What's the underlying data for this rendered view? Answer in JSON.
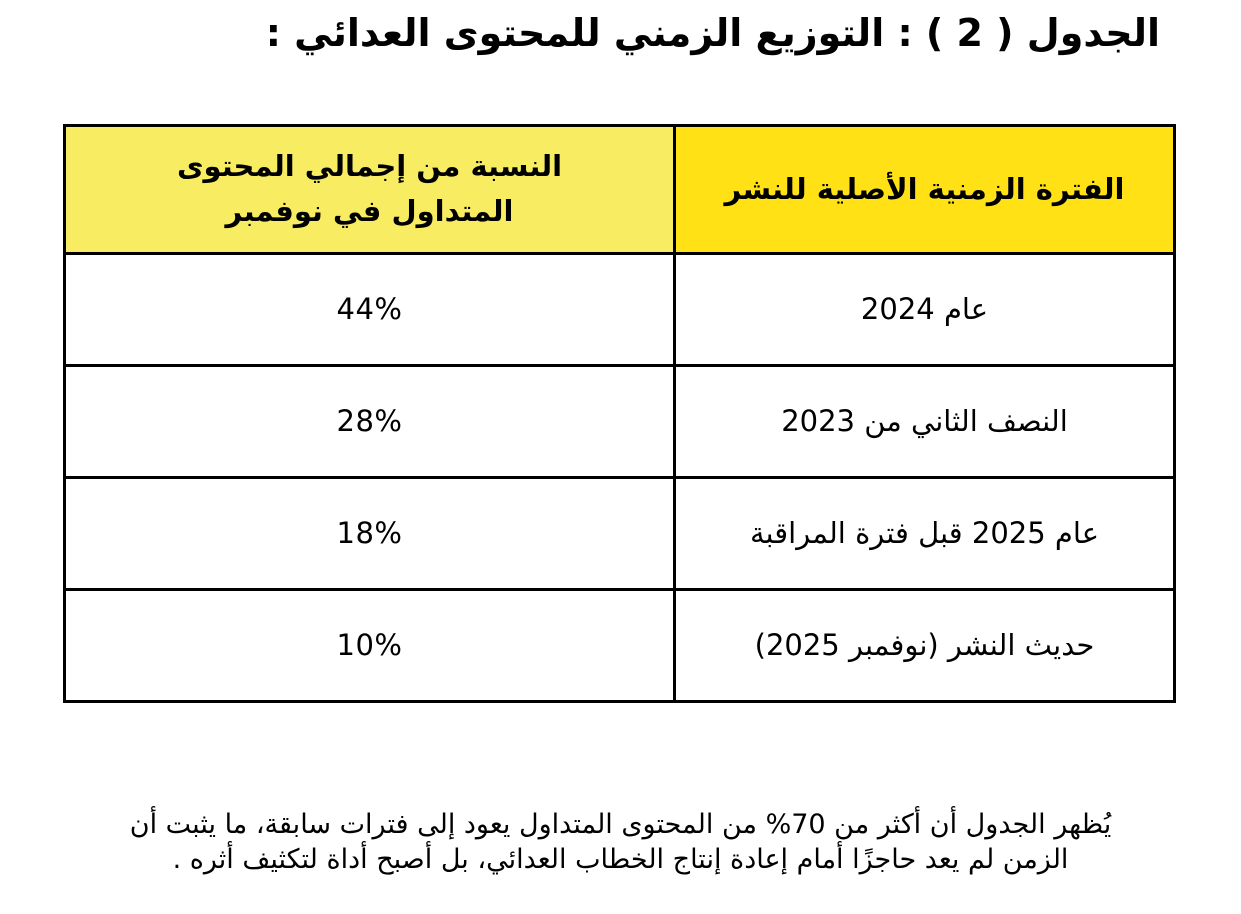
{
  "title": "الجدول ( 2 ) : التوزيع الزمني للمحتوى العدائي :",
  "table": {
    "headers": {
      "period": "الفترة الزمنية الأصلية للنشر",
      "percentage": "النسبة من إجمالي المحتوى المتداول في نوفمبر"
    },
    "rows": [
      {
        "period": "عام 2024",
        "percentage": "44%"
      },
      {
        "period": "النصف الثاني من 2023",
        "percentage": "28%"
      },
      {
        "period": "عام 2025 قبل فترة المراقبة",
        "percentage": "18%"
      },
      {
        "period": "حديث النشر (نوفمبر 2025)",
        "percentage": "10%"
      }
    ]
  },
  "note": {
    "line1": "يُظهر الجدول أن أكثر من 70% من المحتوى المتداول يعود إلى فترات سابقة، ما يثبت أن",
    "line2": "الزمن لم يعد حاجزًا أمام إعادة إنتاج الخطاب العدائي، بل أصبح أداة لتكثيف أثره ."
  },
  "colors": {
    "header_period_bg": "#FFE115",
    "header_percentage_bg": "#F8EC63",
    "border": "#000000",
    "text": "#000000",
    "background": "#FFFFFF"
  }
}
